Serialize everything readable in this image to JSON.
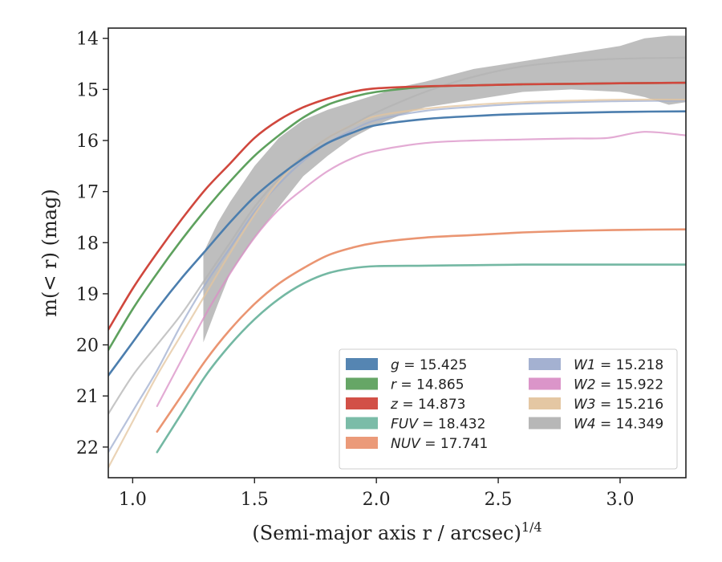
{
  "chart_data": {
    "type": "line",
    "xlabel": "(Semi-major axis r / arcsec)",
    "xlabel_sup": "1/4",
    "ylabel": "m(< r) (mag)",
    "xlim": [
      0.9,
      3.27
    ],
    "ylim": [
      22.6,
      13.8
    ],
    "y_inverted": true,
    "xticks": [
      1.0,
      1.5,
      2.0,
      2.5,
      3.0
    ],
    "xtick_labels": [
      "1.0",
      "1.5",
      "2.0",
      "2.5",
      "3.0"
    ],
    "yticks": [
      14,
      15,
      16,
      17,
      18,
      19,
      20,
      21,
      22
    ],
    "ytick_labels": [
      "14",
      "15",
      "16",
      "17",
      "18",
      "19",
      "20",
      "21",
      "22"
    ],
    "grid": false,
    "legend_placement": "lower-right",
    "series": [
      {
        "name": "g = 15.425",
        "name_italic": "g",
        "name_value": "= 15.425",
        "color": "#4c7eae",
        "x": [
          0.9,
          1.0,
          1.1,
          1.2,
          1.3,
          1.4,
          1.5,
          1.6,
          1.7,
          1.8,
          1.9,
          2.0,
          2.2,
          2.4,
          2.6,
          2.8,
          3.0,
          3.27
        ],
        "y": [
          20.6,
          19.95,
          19.3,
          18.7,
          18.15,
          17.6,
          17.1,
          16.7,
          16.35,
          16.05,
          15.85,
          15.7,
          15.58,
          15.52,
          15.48,
          15.46,
          15.44,
          15.43
        ]
      },
      {
        "name": "r = 14.865",
        "name_italic": "r",
        "name_value": "= 14.865",
        "color": "#5ea15e",
        "x": [
          0.9,
          1.0,
          1.1,
          1.2,
          1.3,
          1.4,
          1.5,
          1.6,
          1.7,
          1.8,
          1.9,
          2.0,
          2.2,
          2.4,
          2.6,
          2.8,
          3.0,
          3.27
        ],
        "y": [
          20.1,
          19.3,
          18.6,
          17.95,
          17.35,
          16.8,
          16.3,
          15.9,
          15.55,
          15.3,
          15.15,
          15.05,
          14.95,
          14.92,
          14.9,
          14.89,
          14.88,
          14.87
        ]
      },
      {
        "name": "z = 14.873",
        "name_italic": "z",
        "name_value": "= 14.873",
        "color": "#d0473d",
        "x": [
          0.9,
          1.0,
          1.1,
          1.2,
          1.3,
          1.4,
          1.5,
          1.6,
          1.7,
          1.8,
          1.9,
          2.0,
          2.2,
          2.4,
          2.6,
          2.8,
          3.0,
          3.27
        ],
        "y": [
          19.7,
          18.9,
          18.2,
          17.55,
          16.95,
          16.45,
          15.95,
          15.6,
          15.35,
          15.18,
          15.05,
          14.98,
          14.94,
          14.92,
          14.9,
          14.89,
          14.88,
          14.87
        ]
      },
      {
        "name": "FUV = 18.432",
        "name_italic": "FUV",
        "name_value": "= 18.432",
        "color": "#74b8a3",
        "x": [
          1.1,
          1.2,
          1.3,
          1.4,
          1.5,
          1.6,
          1.7,
          1.8,
          1.9,
          2.0,
          2.2,
          2.4,
          2.6,
          2.89,
          3.0,
          3.27
        ],
        "y": [
          22.1,
          21.35,
          20.6,
          20.0,
          19.5,
          19.1,
          18.8,
          18.6,
          18.5,
          18.46,
          18.45,
          18.44,
          18.43,
          18.43,
          18.43,
          18.43
        ]
      },
      {
        "name": "NUV = 17.741",
        "name_italic": "NUV",
        "name_value": "= 17.741",
        "color": "#ea9572",
        "x": [
          1.1,
          1.2,
          1.3,
          1.4,
          1.5,
          1.6,
          1.7,
          1.8,
          1.9,
          2.0,
          2.2,
          2.4,
          2.6,
          2.8,
          3.0,
          3.27
        ],
        "y": [
          21.7,
          21.0,
          20.3,
          19.7,
          19.2,
          18.8,
          18.5,
          18.25,
          18.1,
          18.0,
          17.9,
          17.85,
          17.8,
          17.77,
          17.75,
          17.74
        ]
      },
      {
        "name": "W1 = 15.218",
        "name_italic": "W1",
        "name_value": "= 15.218",
        "color": "#9fadcf",
        "x": [
          0.9,
          1.0,
          1.1,
          1.2,
          1.3,
          1.4,
          1.5,
          1.6,
          1.7,
          1.8,
          1.9,
          2.0,
          2.2,
          2.4,
          2.6,
          2.8,
          3.0,
          3.27
        ],
        "y": [
          22.1,
          21.3,
          20.5,
          19.6,
          18.8,
          18.1,
          17.4,
          16.85,
          16.4,
          16.05,
          15.8,
          15.6,
          15.42,
          15.34,
          15.28,
          15.25,
          15.23,
          15.22
        ]
      },
      {
        "name": "W2 = 15.922",
        "name_italic": "W2",
        "name_value": "= 15.922",
        "color": "#d98fc6",
        "x": [
          1.1,
          1.2,
          1.3,
          1.4,
          1.5,
          1.6,
          1.7,
          1.8,
          1.9,
          2.0,
          2.2,
          2.4,
          2.6,
          2.8,
          2.95,
          3.1,
          3.27
        ],
        "y": [
          21.2,
          20.3,
          19.4,
          18.6,
          17.9,
          17.35,
          16.95,
          16.6,
          16.35,
          16.2,
          16.05,
          16.0,
          15.98,
          15.96,
          15.95,
          15.83,
          15.9
        ]
      },
      {
        "name": "W3 = 15.216",
        "name_italic": "W3",
        "name_value": "= 15.216",
        "color": "#e3c49e",
        "x": [
          0.9,
          1.0,
          1.1,
          1.2,
          1.3,
          1.4,
          1.5,
          1.6,
          1.7,
          1.8,
          1.9,
          2.0,
          2.2,
          2.4,
          2.6,
          2.8,
          3.0,
          3.27
        ],
        "y": [
          22.4,
          21.5,
          20.6,
          19.8,
          19.0,
          18.2,
          17.45,
          16.8,
          16.3,
          15.95,
          15.7,
          15.52,
          15.38,
          15.3,
          15.25,
          15.22,
          15.2,
          15.2
        ]
      },
      {
        "name": "W4 = 14.349",
        "name_italic": "W4",
        "name_value": "= 14.349",
        "color": "#b3b3b3",
        "x": [
          0.9,
          1.0,
          1.1,
          1.2,
          1.3,
          1.4,
          1.5,
          1.6,
          1.7,
          1.8,
          1.9,
          2.0,
          2.2,
          2.4,
          2.6,
          2.8,
          3.0,
          3.27
        ],
        "y": [
          21.35,
          20.6,
          20.0,
          19.4,
          18.7,
          18.0,
          17.3,
          16.75,
          16.3,
          15.95,
          15.7,
          15.45,
          15.05,
          14.75,
          14.55,
          14.45,
          14.4,
          14.38
        ],
        "band_x": [
          1.29,
          1.35,
          1.4,
          1.5,
          1.6,
          1.7,
          1.8,
          1.9,
          2.0,
          2.1,
          2.2,
          2.4,
          2.6,
          2.8,
          3.0,
          3.1,
          3.2,
          3.27
        ],
        "band_upper": [
          18.2,
          17.6,
          17.2,
          16.5,
          15.95,
          15.6,
          15.4,
          15.25,
          15.1,
          14.95,
          14.85,
          14.6,
          14.45,
          14.3,
          14.15,
          14.0,
          13.95,
          13.95
        ],
        "band_lower": [
          19.95,
          19.2,
          18.6,
          17.9,
          17.3,
          16.7,
          16.3,
          15.95,
          15.7,
          15.5,
          15.35,
          15.2,
          15.05,
          15.0,
          15.05,
          15.15,
          15.3,
          15.25
        ]
      }
    ]
  }
}
